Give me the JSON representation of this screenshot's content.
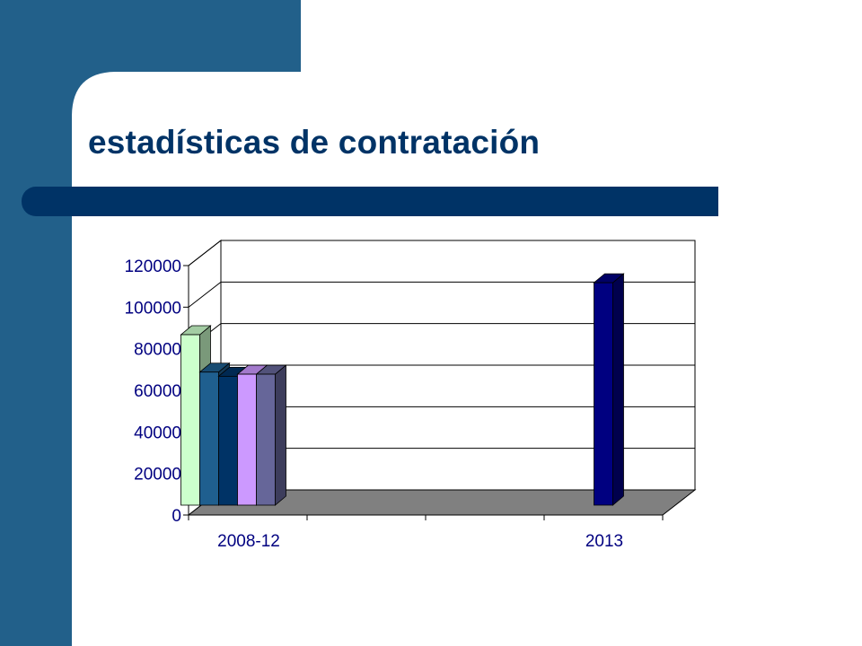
{
  "slide": {
    "title": "estadísticas de contratación",
    "colors": {
      "sidebar": "#22608A",
      "title_bar": "#003366",
      "title_text": "#003366",
      "tick_text": "#000080"
    }
  },
  "chart_data": {
    "type": "bar",
    "style": "3d-clustered",
    "title": "",
    "xlabel": "",
    "ylabel": "",
    "ylim": [
      0,
      120000
    ],
    "yticks": [
      0,
      20000,
      40000,
      60000,
      80000,
      100000,
      120000
    ],
    "ytick_labels": [
      "0",
      "20000",
      "40000",
      "60000",
      "80000",
      "100000",
      "120000"
    ],
    "categories": [
      "2008-12",
      "",
      "",
      "2013"
    ],
    "grid": true,
    "legend": "none",
    "wall_color": "#ffffff",
    "floor_color": "#808080",
    "series": [
      {
        "color": "#CCFFCC",
        "values": [
          82000,
          null,
          null,
          null
        ]
      },
      {
        "color": "#1F5F8F",
        "values": [
          64000,
          null,
          null,
          null
        ]
      },
      {
        "color": "#003366",
        "values": [
          62000,
          null,
          null,
          null
        ]
      },
      {
        "color": "#CC99FF",
        "values": [
          63000,
          null,
          null,
          null
        ]
      },
      {
        "color": "#666699",
        "values": [
          63000,
          null,
          null,
          null
        ]
      },
      {
        "color": "#000080",
        "values": [
          null,
          null,
          null,
          107000
        ]
      }
    ]
  }
}
